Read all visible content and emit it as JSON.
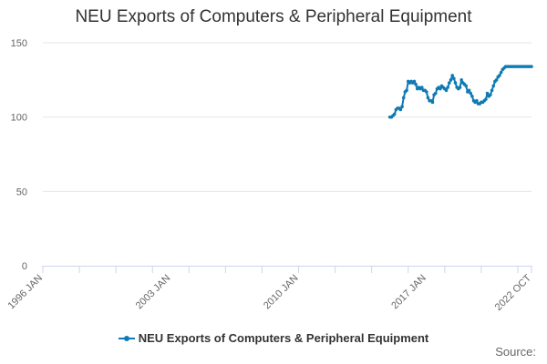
{
  "chart_data": {
    "type": "line",
    "title": "NEU Exports of Computers & Peripheral Equipment",
    "xlabel": "",
    "ylabel": "",
    "x_range": [
      "1996-01",
      "2022-10"
    ],
    "ylim": [
      0,
      150
    ],
    "y_ticks": [
      0,
      50,
      100,
      150
    ],
    "x_tick_labels": [
      "1996 JAN",
      "2003 JAN",
      "2010 JAN",
      "2017 JAN",
      "2022 OCT"
    ],
    "grid": "horizontal",
    "legend_position": "bottom",
    "colors": {
      "series": "#0f7ab4",
      "grid": "#e6e6e6",
      "axis": "#ccd6eb"
    },
    "series": [
      {
        "name": "NEU Exports of Computers & Peripheral Equipment",
        "x": [
          "2015-01",
          "2015-02",
          "2015-03",
          "2015-04",
          "2015-05",
          "2015-06",
          "2015-07",
          "2015-08",
          "2015-09",
          "2015-10",
          "2015-11",
          "2015-12",
          "2016-01",
          "2016-02",
          "2016-03",
          "2016-04",
          "2016-05",
          "2016-06",
          "2016-07",
          "2016-08",
          "2016-09",
          "2016-10",
          "2016-11",
          "2016-12",
          "2017-01",
          "2017-02",
          "2017-03",
          "2017-04",
          "2017-05",
          "2017-06",
          "2017-07",
          "2017-08",
          "2017-09",
          "2017-10",
          "2017-11",
          "2017-12",
          "2018-01",
          "2018-02",
          "2018-03",
          "2018-04",
          "2018-05",
          "2018-06",
          "2018-07",
          "2018-08",
          "2018-09",
          "2018-10",
          "2018-11",
          "2018-12",
          "2019-01",
          "2019-02",
          "2019-03",
          "2019-04",
          "2019-05",
          "2019-06",
          "2019-07",
          "2019-08",
          "2019-09",
          "2019-10",
          "2019-11",
          "2019-12",
          "2020-01",
          "2020-02",
          "2020-03",
          "2020-04",
          "2020-05",
          "2020-06",
          "2020-07",
          "2020-08",
          "2020-09",
          "2020-10",
          "2020-11",
          "2020-12",
          "2021-01",
          "2021-02",
          "2021-03",
          "2021-04",
          "2021-05",
          "2021-06",
          "2021-07",
          "2021-08",
          "2021-09",
          "2021-10",
          "2021-11",
          "2021-12",
          "2022-01",
          "2022-02",
          "2022-03",
          "2022-04",
          "2022-05",
          "2022-06",
          "2022-07",
          "2022-08",
          "2022-09",
          "2022-10"
        ],
        "values": [
          100,
          100,
          101,
          102,
          105,
          106,
          106,
          105,
          107,
          113,
          117,
          118,
          124,
          123,
          124,
          123,
          124,
          122,
          119,
          120,
          119,
          120,
          118,
          118,
          117,
          113,
          111,
          111,
          110,
          115,
          116,
          119,
          120,
          119,
          121,
          120,
          119,
          118,
          120,
          123,
          125,
          128,
          126,
          123,
          120,
          119,
          120,
          125,
          123,
          122,
          121,
          117,
          118,
          116,
          114,
          111,
          110,
          111,
          109,
          109,
          110,
          110,
          111,
          112,
          116,
          114,
          115,
          118,
          121,
          124,
          125,
          127,
          128,
          130,
          132,
          133,
          134,
          134,
          134,
          134,
          134,
          134,
          134,
          134,
          134,
          134,
          134,
          134,
          134,
          134,
          134,
          134,
          134,
          134
        ]
      }
    ]
  },
  "legend": {
    "label": "NEU Exports of Computers & Peripheral Equipment"
  },
  "source_label": "Source:"
}
